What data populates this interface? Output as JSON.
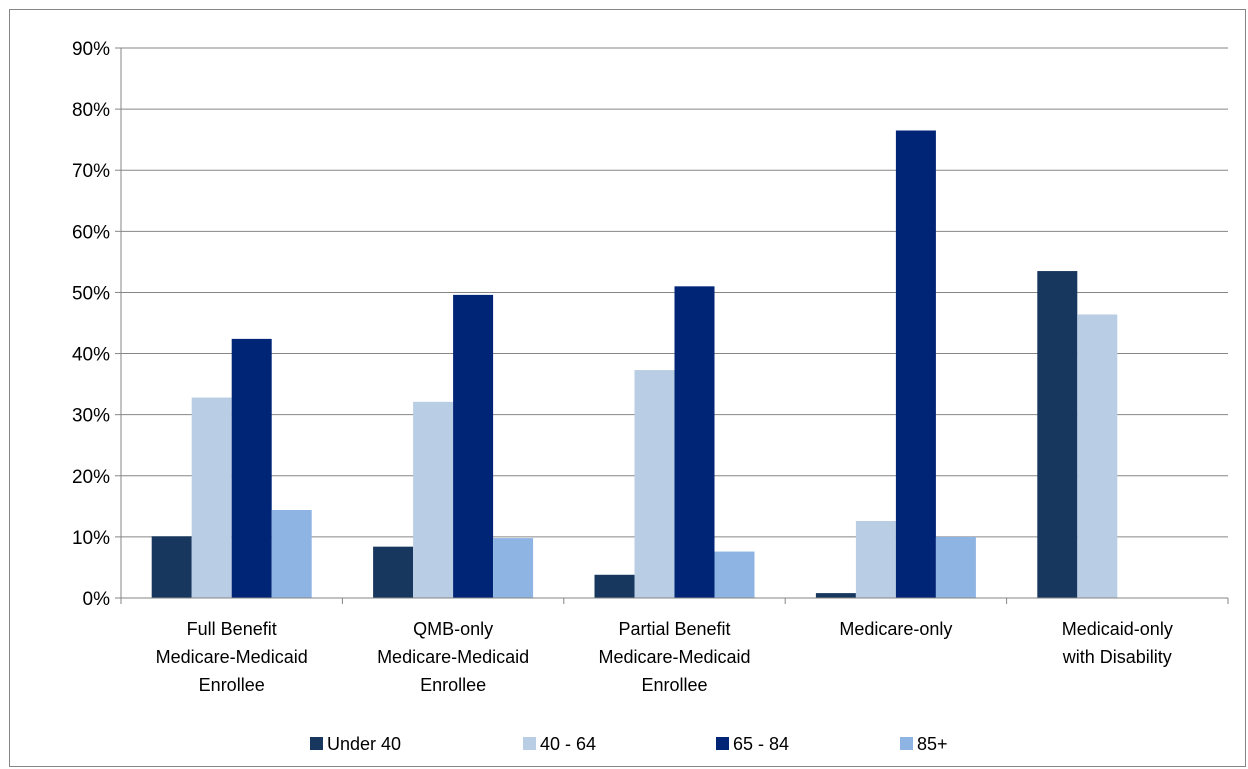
{
  "chart_data": {
    "type": "bar",
    "title": "",
    "xlabel": "",
    "ylabel": "",
    "ylim": [
      0,
      90
    ],
    "y_ticks": [
      0,
      10,
      20,
      30,
      40,
      50,
      60,
      70,
      80,
      90
    ],
    "y_tick_labels": [
      "0%",
      "10%",
      "20%",
      "30%",
      "40%",
      "50%",
      "60%",
      "70%",
      "80%",
      "90%"
    ],
    "grid": true,
    "legend_position": "bottom",
    "categories": [
      [
        "Full Benefit",
        "Medicare-Medicaid",
        "Enrollee"
      ],
      [
        "QMB-only",
        "Medicare-Medicaid",
        "Enrollee"
      ],
      [
        "Partial Benefit",
        "Medicare-Medicaid",
        "Enrollee"
      ],
      [
        "Medicare-only"
      ],
      [
        "Medicaid-only",
        "with Disability"
      ]
    ],
    "series": [
      {
        "name": "Under 40",
        "color": "#17375e",
        "values": [
          10.1,
          8.4,
          3.8,
          0.8,
          53.5
        ]
      },
      {
        "name": "40 - 64",
        "color": "#b9cde5",
        "values": [
          32.8,
          32.1,
          37.3,
          12.6,
          46.4
        ]
      },
      {
        "name": "65 - 84",
        "color": "#002476",
        "values": [
          42.4,
          49.6,
          51.0,
          76.5,
          null
        ]
      },
      {
        "name": "85+",
        "color": "#8eb4e3",
        "values": [
          14.4,
          9.8,
          7.6,
          10.0,
          null
        ]
      }
    ]
  }
}
